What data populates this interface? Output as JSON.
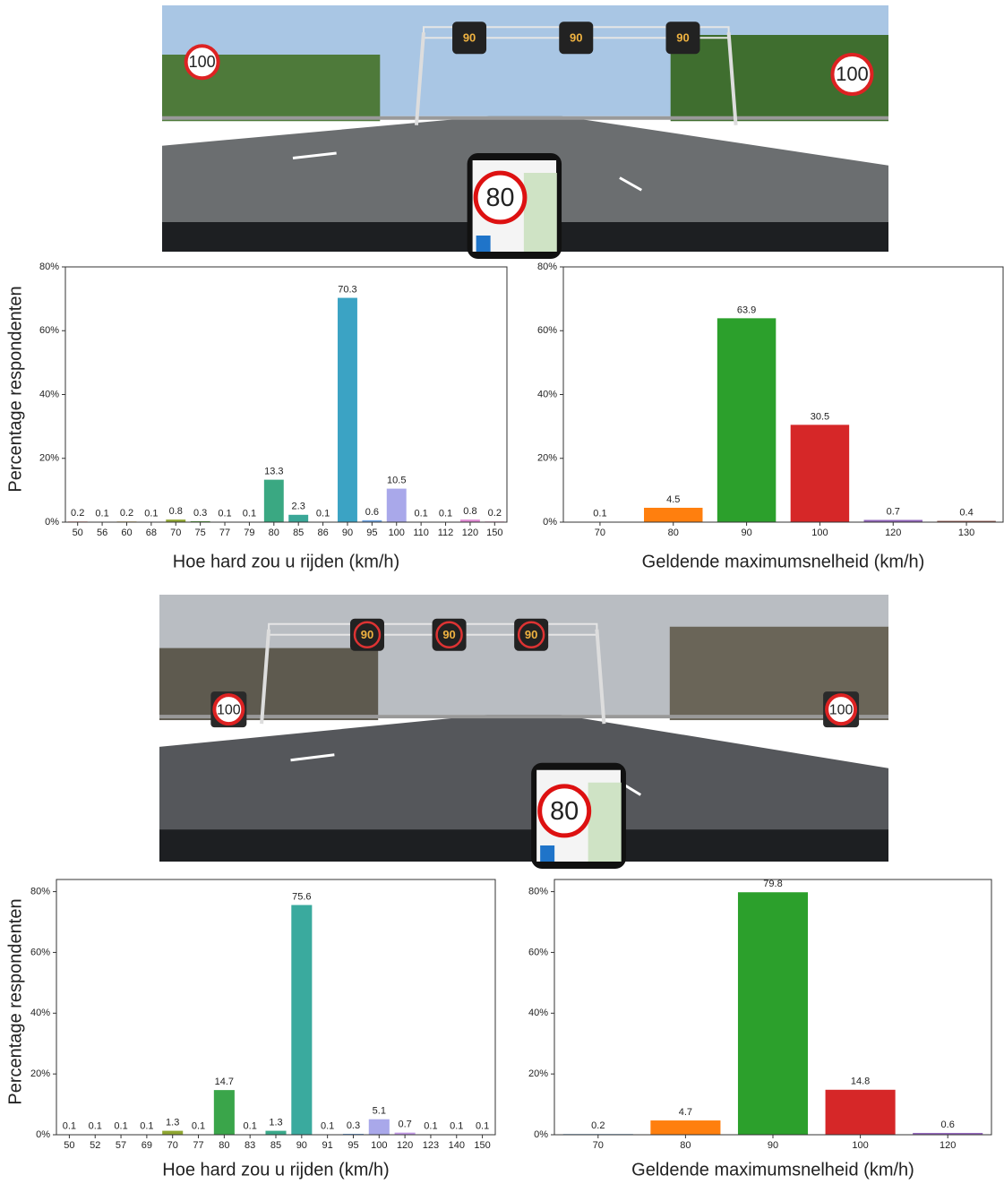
{
  "photos": [
    {
      "signs": [
        "100",
        "90",
        "90",
        "90",
        "100"
      ],
      "phone": "80"
    },
    {
      "signs": [
        "100",
        "90",
        "90",
        "90",
        "100"
      ],
      "phone": "80"
    }
  ],
  "chart_data": [
    {
      "type": "bar",
      "y_label": "Percentage respondenten",
      "x_label": "Hoe hard zou u rijden (km/h)",
      "categories": [
        "50",
        "56",
        "60",
        "68",
        "70",
        "75",
        "77",
        "79",
        "80",
        "85",
        "86",
        "90",
        "95",
        "100",
        "110",
        "112",
        "120",
        "150"
      ],
      "values": [
        0.2,
        0.1,
        0.2,
        0.1,
        0.8,
        0.3,
        0.1,
        0.1,
        13.3,
        2.3,
        0.1,
        70.3,
        0.6,
        10.5,
        0.1,
        0.1,
        0.8,
        0.2
      ],
      "colors": [
        "#e8776d",
        "#dc8a3d",
        "#c99a33",
        "#b0a233",
        "#8fa631",
        "#5bab3c",
        "#3bac5c",
        "#3aab72",
        "#3aa882",
        "#3aa797",
        "#3ba5ac",
        "#3ba3c4",
        "#6fa5e3",
        "#a9a8ea",
        "#c49be8",
        "#d58fe3",
        "#e08ad4",
        "#e884b8"
      ],
      "ylim": [
        0,
        80
      ],
      "yticks": [
        {
          "value": 0,
          "label": "0%"
        },
        {
          "value": 20,
          "label": "20%"
        },
        {
          "value": 40,
          "label": "40%"
        },
        {
          "value": 60,
          "label": "60%"
        },
        {
          "value": 80,
          "label": "80%"
        }
      ]
    },
    {
      "type": "bar",
      "x_label": "Geldende maximumsnelheid (km/h)",
      "categories": [
        "70",
        "80",
        "90",
        "100",
        "120",
        "130"
      ],
      "values": [
        0.1,
        4.5,
        63.9,
        30.5,
        0.7,
        0.4
      ],
      "colors": [
        "#1f77b4",
        "#ff7f0e",
        "#2ca02c",
        "#d62728",
        "#9467bd",
        "#8c564b"
      ],
      "ylim": [
        0,
        80
      ],
      "yticks": [
        {
          "value": 0,
          "label": "0%"
        },
        {
          "value": 20,
          "label": "20%"
        },
        {
          "value": 40,
          "label": "40%"
        },
        {
          "value": 60,
          "label": "60%"
        },
        {
          "value": 80,
          "label": "80%"
        }
      ]
    },
    {
      "type": "bar",
      "y_label": "Percentage respondenten",
      "x_label": "Hoe hard zou u rijden (km/h)",
      "categories": [
        "50",
        "52",
        "57",
        "69",
        "70",
        "77",
        "80",
        "83",
        "85",
        "90",
        "91",
        "95",
        "100",
        "120",
        "123",
        "140",
        "150"
      ],
      "values": [
        0.1,
        0.1,
        0.1,
        0.1,
        1.3,
        0.1,
        14.7,
        0.1,
        1.3,
        75.6,
        0.1,
        0.3,
        5.1,
        0.7,
        0.1,
        0.1,
        0.1
      ],
      "colors": [
        "#e8776d",
        "#dc8a3d",
        "#c99a33",
        "#b0a233",
        "#8fa631",
        "#5bab3c",
        "#3aa54a",
        "#3aab72",
        "#3aa98a",
        "#3aaa9e",
        "#3ba5ac",
        "#6fa5e3",
        "#a9a8ea",
        "#c49be8",
        "#d58fe3",
        "#e08ad4",
        "#e884b8"
      ],
      "ylim": [
        0,
        84
      ],
      "yticks": [
        {
          "value": 0,
          "label": "0%"
        },
        {
          "value": 20,
          "label": "20%"
        },
        {
          "value": 40,
          "label": "40%"
        },
        {
          "value": 60,
          "label": "60%"
        },
        {
          "value": 80,
          "label": "80%"
        }
      ]
    },
    {
      "type": "bar",
      "x_label": "Geldende maximumsnelheid (km/h)",
      "categories": [
        "70",
        "80",
        "90",
        "100",
        "120"
      ],
      "values": [
        0.2,
        4.7,
        79.8,
        14.8,
        0.6
      ],
      "colors": [
        "#1f77b4",
        "#ff7f0e",
        "#2ca02c",
        "#d62728",
        "#9467bd"
      ],
      "ylim": [
        0,
        84
      ],
      "yticks": [
        {
          "value": 0,
          "label": "0%"
        },
        {
          "value": 20,
          "label": "20%"
        },
        {
          "value": 40,
          "label": "40%"
        },
        {
          "value": 60,
          "label": "60%"
        },
        {
          "value": 80,
          "label": "80%"
        }
      ]
    }
  ]
}
